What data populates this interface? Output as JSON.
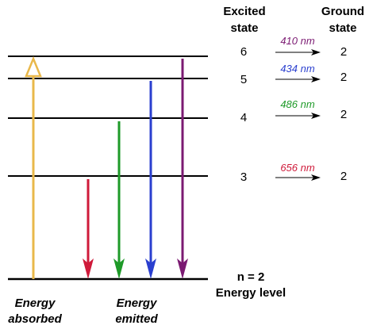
{
  "headers": {
    "excited_line1": "Excited",
    "excited_line2": "state",
    "ground_line1": "Ground",
    "ground_line2": "state"
  },
  "levels": [
    {
      "n": "6",
      "ground": "2"
    },
    {
      "n": "5",
      "ground": "2"
    },
    {
      "n": "4",
      "ground": "2"
    },
    {
      "n": "3",
      "ground": "2"
    }
  ],
  "transitions": [
    {
      "wavelength": "410 nm",
      "color": "#7b1a72"
    },
    {
      "wavelength": "434 nm",
      "color": "#2a3fcf"
    },
    {
      "wavelength": "486 nm",
      "color": "#1e9a28"
    },
    {
      "wavelength": "656 nm",
      "color": "#cf1a3a"
    }
  ],
  "absorbed_color": "#e9b84a",
  "ground_level": {
    "line1": "n = 2",
    "line2": "Energy level"
  },
  "captions": {
    "absorbed_line1": "Energy",
    "absorbed_line2": "absorbed",
    "emitted_line1": "Energy",
    "emitted_line2": "emitted"
  }
}
